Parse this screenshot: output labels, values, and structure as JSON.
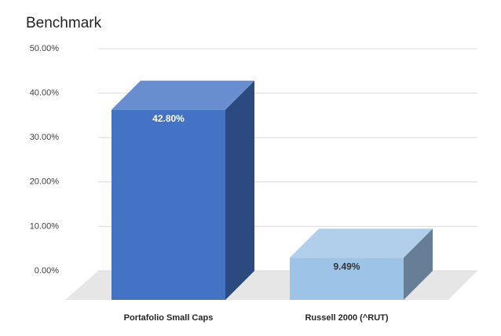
{
  "chart_data": {
    "type": "bar3d",
    "title": "Benchmark",
    "categories": [
      "Portafolio Small Caps",
      "Russell 2000 (^RUT)"
    ],
    "values": [
      42.8,
      9.49
    ],
    "value_labels": [
      "42.80%",
      "9.49%"
    ],
    "colors": [
      "#4472c4",
      "#9dc3e6"
    ],
    "ylim": [
      0,
      50
    ],
    "yticks": [
      {
        "value": 0,
        "label": "0.00%"
      },
      {
        "value": 10,
        "label": "10.00%"
      },
      {
        "value": 20,
        "label": "20.00%"
      },
      {
        "value": 30,
        "label": "30.00%"
      },
      {
        "value": 40,
        "label": "40.00%"
      },
      {
        "value": 50,
        "label": "50.00%"
      }
    ],
    "grid": true
  }
}
